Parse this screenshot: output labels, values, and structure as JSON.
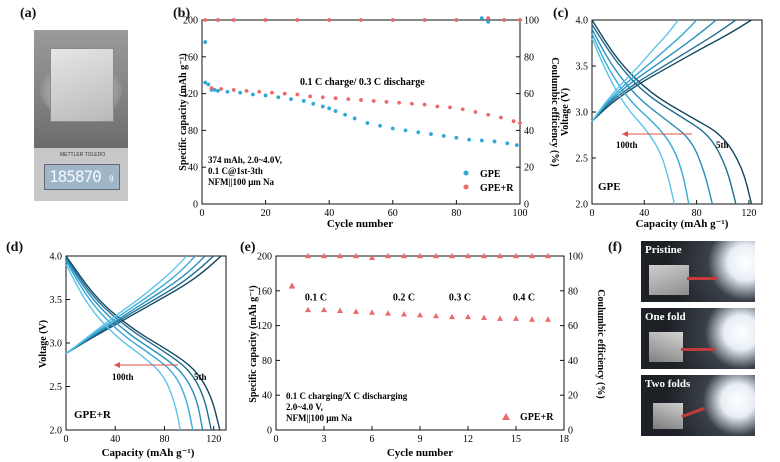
{
  "panels": {
    "a": {
      "label": "(a)",
      "scale_brand": "METTLER TOLEDO",
      "scale_reading": "185870",
      "scale_unit": "g"
    },
    "b": {
      "label": "(b)"
    },
    "c": {
      "label": "(c)"
    },
    "d": {
      "label": "(d)"
    },
    "e": {
      "label": "(e)"
    },
    "f": {
      "label": "(f)",
      "photos": [
        "Pristine",
        "One fold",
        "Two folds"
      ]
    }
  },
  "colors": {
    "cyan": "#2fa8d8",
    "red": "#ec6a6a",
    "red_arrow": "#e0504a",
    "axis": "#111111",
    "dark_blue": "#14485e"
  },
  "chart_data": [
    {
      "id": "b",
      "type": "scatter",
      "xlabel": "Cycle number",
      "ylabel": "Specific capacity (mAh g⁻¹)",
      "y2label": "Coulumbic efficiency (%)",
      "xlim": [
        0,
        100
      ],
      "ylim": [
        0,
        200
      ],
      "y2lim": [
        0,
        100
      ],
      "xticks": [
        0,
        20,
        40,
        60,
        80,
        100
      ],
      "yticks": [
        0,
        40,
        80,
        120,
        160,
        200
      ],
      "y2ticks": [
        0,
        20,
        40,
        60,
        80,
        100
      ],
      "legend": [
        "GPE",
        "GPE+R"
      ],
      "legend_position": "bottom-right",
      "annotations": [
        "0.1 C charge/ 0.3 C discharge",
        "374 mAh, 2.0~4.0V,",
        "0.1 C@1st-3th",
        "NFM||100 μm Na"
      ],
      "series": [
        {
          "name": "GPE",
          "axis": "left",
          "color": "#2fa8d8",
          "x": [
            1,
            2,
            3,
            4,
            5,
            8,
            12,
            16,
            20,
            24,
            28,
            32,
            35,
            38,
            40,
            42,
            45,
            48,
            52,
            56,
            60,
            64,
            68,
            72,
            76,
            80,
            84,
            88,
            92,
            96,
            99
          ],
          "y": [
            132,
            130,
            124,
            124,
            123,
            122,
            121,
            119,
            118,
            116,
            114,
            112,
            109,
            106,
            104,
            101,
            97,
            93,
            88,
            85,
            82,
            80,
            78,
            76,
            74,
            72,
            70,
            69,
            68,
            66,
            64
          ]
        },
        {
          "name": "GPE+R",
          "axis": "left",
          "color": "#ec6a6a",
          "x": [
            3,
            6,
            10,
            14,
            18,
            22,
            26,
            30,
            34,
            38,
            42,
            46,
            50,
            54,
            58,
            62,
            66,
            70,
            74,
            78,
            82,
            86,
            90,
            94,
            98,
            100
          ],
          "y": [
            126,
            125,
            124,
            123,
            122,
            121,
            120,
            119,
            117,
            116,
            115,
            114,
            113,
            112,
            111,
            110,
            109,
            108,
            106,
            105,
            103,
            100,
            97,
            94,
            90,
            88
          ]
        },
        {
          "name": "GPE CE",
          "axis": "right",
          "color": "#2fa8d8",
          "x": [
            1,
            5,
            10,
            20,
            30,
            40,
            50,
            60,
            70,
            80,
            88,
            90,
            95,
            100
          ],
          "y": [
            88,
            100,
            100,
            100,
            100,
            100,
            100,
            100,
            100,
            100,
            101,
            99,
            100,
            100
          ]
        },
        {
          "name": "GPE+R CE",
          "axis": "right",
          "color": "#ec6a6a",
          "x": [
            1,
            5,
            10,
            20,
            30,
            40,
            50,
            60,
            70,
            80,
            90,
            95,
            100
          ],
          "y": [
            100,
            100,
            100,
            100,
            100,
            100,
            100,
            100,
            100,
            100,
            101,
            100,
            100
          ]
        }
      ]
    },
    {
      "id": "c",
      "type": "line",
      "xlabel": "Capacity (mAh g⁻¹)",
      "ylabel": "Voltage (V)",
      "xlim": [
        0,
        130
      ],
      "ylim": [
        2.0,
        4.0
      ],
      "xticks": [
        0,
        40,
        80,
        120
      ],
      "yticks": [
        2.0,
        2.5,
        3.0,
        3.5,
        4.0
      ],
      "legend": [
        "GPE"
      ],
      "annotations": [
        "100th",
        "5th"
      ],
      "series": [
        {
          "name": "",
          "cycle": "5th",
          "color": "#14485e",
          "charge": {
            "x": [
              0,
              15,
              35,
              60,
              85,
              105,
              122
            ],
            "y": [
              2.9,
              3.1,
              3.3,
              3.5,
              3.7,
              3.85,
              4.0
            ]
          },
          "discharge": {
            "x": [
              0,
              20,
              45,
              75,
              100,
              115,
              122
            ],
            "y": [
              4.0,
              3.55,
              3.2,
              2.95,
              2.75,
              2.4,
              2.0
            ]
          }
        },
        {
          "name": "",
          "color": "#1f6e93",
          "charge": {
            "x": [
              0,
              13,
              32,
              55,
              78,
              95,
              110
            ],
            "y": [
              2.9,
              3.1,
              3.3,
              3.5,
              3.7,
              3.85,
              4.0
            ]
          },
          "discharge": {
            "x": [
              0,
              18,
              40,
              68,
              90,
              103,
              110
            ],
            "y": [
              3.95,
              3.55,
              3.2,
              2.95,
              2.75,
              2.4,
              2.0
            ]
          }
        },
        {
          "name": "",
          "color": "#2a8fbb",
          "charge": {
            "x": [
              0,
              12,
              28,
              48,
              68,
              82,
              95
            ],
            "y": [
              2.9,
              3.1,
              3.3,
              3.5,
              3.7,
              3.85,
              4.0
            ]
          },
          "discharge": {
            "x": [
              0,
              15,
              35,
              58,
              76,
              86,
              92
            ],
            "y": [
              3.9,
              3.5,
              3.15,
              2.9,
              2.7,
              2.35,
              2.0
            ]
          }
        },
        {
          "name": "",
          "color": "#38a9d6",
          "charge": {
            "x": [
              0,
              11,
              25,
              42,
              58,
              70,
              80
            ],
            "y": [
              2.9,
              3.1,
              3.3,
              3.5,
              3.7,
              3.85,
              4.0
            ]
          },
          "discharge": {
            "x": [
              0,
              13,
              30,
              50,
              63,
              70,
              74
            ],
            "y": [
              3.85,
              3.45,
              3.1,
              2.85,
              2.6,
              2.3,
              2.0
            ]
          }
        },
        {
          "name": "",
          "cycle": "100th",
          "color": "#5ec4ea",
          "charge": {
            "x": [
              0,
              10,
              22,
              36,
              48,
              58,
              66
            ],
            "y": [
              2.9,
              3.1,
              3.3,
              3.5,
              3.7,
              3.85,
              4.0
            ]
          },
          "discharge": {
            "x": [
              0,
              12,
              26,
              42,
              53,
              59,
              63
            ],
            "y": [
              3.8,
              3.4,
              3.05,
              2.8,
              2.55,
              2.25,
              2.0
            ]
          }
        }
      ]
    },
    {
      "id": "d",
      "type": "line",
      "xlabel": "Capacity (mAh g⁻¹)",
      "ylabel": "Voltage (V)",
      "xlim": [
        0,
        130
      ],
      "ylim": [
        2.0,
        4.0
      ],
      "xticks": [
        0,
        40,
        80,
        120
      ],
      "yticks": [
        2.0,
        2.5,
        3.0,
        3.5,
        4.0
      ],
      "legend": [
        "GPE+R"
      ],
      "annotations": [
        "100th",
        "5th"
      ],
      "series": [
        {
          "name": "",
          "cycle": "5th",
          "color": "#14485e",
          "charge": {
            "x": [
              0,
              20,
              45,
              70,
              95,
              112,
              126
            ],
            "y": [
              2.88,
              3.05,
              3.25,
              3.45,
              3.65,
              3.82,
              4.0
            ]
          },
          "discharge": {
            "x": [
              0,
              25,
              55,
              85,
              105,
              118,
              125
            ],
            "y": [
              4.0,
              3.5,
              3.15,
              2.9,
              2.7,
              2.4,
              2.0
            ]
          }
        },
        {
          "name": "",
          "color": "#1f6e93",
          "charge": {
            "x": [
              0,
              19,
              42,
              66,
              90,
              106,
              120
            ],
            "y": [
              2.88,
              3.05,
              3.25,
              3.45,
              3.65,
              3.82,
              4.0
            ]
          },
          "discharge": {
            "x": [
              0,
              23,
              52,
              80,
              100,
              112,
              118
            ],
            "y": [
              3.98,
              3.5,
              3.15,
              2.9,
              2.7,
              2.4,
              2.0
            ]
          }
        },
        {
          "name": "",
          "color": "#2a8fbb",
          "charge": {
            "x": [
              0,
              18,
              40,
              62,
              84,
              100,
              113
            ],
            "y": [
              2.88,
              3.05,
              3.25,
              3.45,
              3.65,
              3.82,
              4.0
            ]
          },
          "discharge": {
            "x": [
              0,
              22,
              49,
              75,
              94,
              106,
              111
            ],
            "y": [
              3.96,
              3.48,
              3.12,
              2.88,
              2.68,
              2.38,
              2.0
            ]
          }
        },
        {
          "name": "",
          "color": "#38a9d6",
          "charge": {
            "x": [
              0,
              17,
              37,
              58,
              78,
              93,
              105
            ],
            "y": [
              2.88,
              3.05,
              3.25,
              3.45,
              3.65,
              3.82,
              4.0
            ]
          },
          "discharge": {
            "x": [
              0,
              20,
              45,
              70,
              88,
              98,
              103
            ],
            "y": [
              3.94,
              3.46,
              3.1,
              2.86,
              2.66,
              2.36,
              2.0
            ]
          }
        },
        {
          "name": "",
          "cycle": "100th",
          "color": "#5ec4ea",
          "charge": {
            "x": [
              0,
              16,
              34,
              54,
              72,
              86,
              98
            ],
            "y": [
              2.88,
              3.05,
              3.25,
              3.45,
              3.65,
              3.82,
              4.0
            ]
          },
          "discharge": {
            "x": [
              0,
              18,
              40,
              63,
              79,
              88,
              93
            ],
            "y": [
              3.9,
              3.42,
              3.08,
              2.84,
              2.64,
              2.34,
              2.0
            ]
          }
        }
      ]
    },
    {
      "id": "e",
      "type": "scatter",
      "xlabel": "Cycle number",
      "ylabel": "Specific capacity (mAh g⁻¹)",
      "y2label": "Coulumbic efficiency (%)",
      "xlim": [
        0,
        18
      ],
      "ylim": [
        0,
        200
      ],
      "y2lim": [
        0,
        100
      ],
      "xticks": [
        0,
        3,
        6,
        9,
        12,
        15,
        18
      ],
      "yticks": [
        0,
        40,
        80,
        120,
        160,
        200
      ],
      "y2ticks": [
        0,
        20,
        40,
        60,
        80,
        100
      ],
      "legend": [
        "GPE+R"
      ],
      "legend_position": "bottom-right",
      "annotations": [
        "0.1 C charging/X C discharging",
        "2.0~4.0 V,",
        "NFM||100 μm Na"
      ],
      "rate_labels": [
        {
          "text": "0.1 C",
          "x": 2.5
        },
        {
          "text": "0.2 C",
          "x": 8.0
        },
        {
          "text": "0.3 C",
          "x": 11.5
        },
        {
          "text": "0.4 C",
          "x": 15.5
        }
      ],
      "series": [
        {
          "name": "GPE+R",
          "axis": "left",
          "color": "#ec6a6a",
          "x": [
            1,
            2,
            3,
            4,
            5,
            6,
            7,
            8,
            9,
            10,
            11,
            12,
            13,
            14,
            15,
            16,
            17
          ],
          "y": [
            165,
            138,
            138,
            137,
            136,
            135,
            134,
            133,
            132,
            131,
            130,
            130,
            129,
            128,
            128,
            127,
            127
          ]
        },
        {
          "name": "GPE+R CE",
          "axis": "right",
          "color": "#ec6a6a",
          "x": [
            1,
            2,
            3,
            4,
            5,
            6,
            7,
            8,
            9,
            10,
            11,
            12,
            13,
            14,
            15,
            16,
            17
          ],
          "y": [
            83,
            100,
            100,
            100,
            100,
            99,
            100,
            100,
            100,
            100,
            100,
            100,
            100,
            100,
            100,
            100,
            100
          ]
        }
      ]
    }
  ]
}
